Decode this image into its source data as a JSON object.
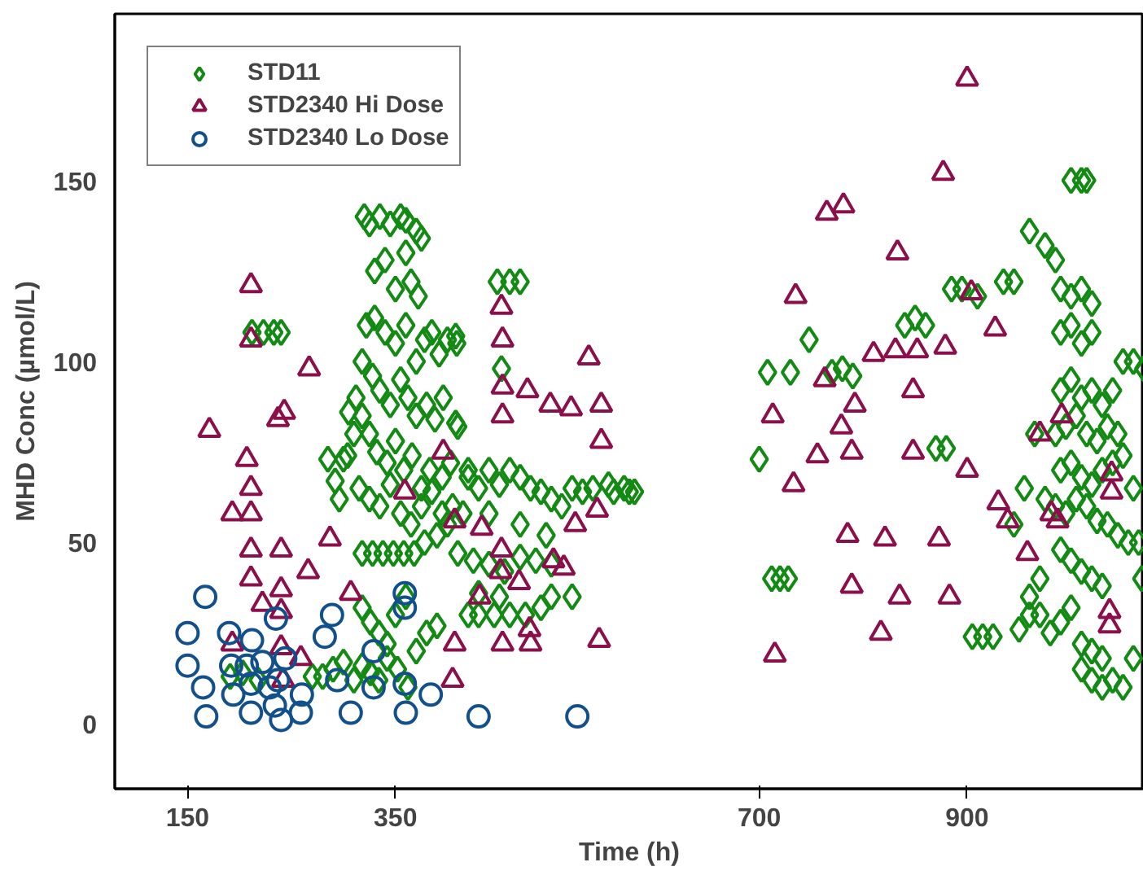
{
  "chart_data": {
    "type": "scatter",
    "xlabel": "Time (h)",
    "ylabel": "MHD Conc (µmol/L)",
    "xlim": [
      80,
      1070
    ],
    "xticks": [
      150,
      350,
      700,
      900
    ],
    "ylim": [
      -18,
      196
    ],
    "yticks": [
      0,
      50,
      100,
      150
    ],
    "grid": false,
    "legend": "top left",
    "series": [
      {
        "name": "STD11",
        "color": "#138a13",
        "marker": "diamond",
        "x": [
          212,
          223,
          233,
          240,
          191,
          203,
          218,
          320,
          325,
          335,
          345,
          355,
          360,
          370,
          375,
          330,
          340,
          350,
          360,
          365,
          372,
          322,
          330,
          340,
          350,
          360,
          370,
          378,
          385,
          392,
          400,
          408,
          318,
          328,
          335,
          345,
          355,
          362,
          370,
          380,
          388,
          396,
          410,
          318,
          325,
          332,
          342,
          350,
          358,
          366,
          375,
          383,
          395,
          403,
          420,
          315,
          325,
          335,
          345,
          355,
          365,
          375,
          385,
          395,
          405,
          318,
          328,
          338,
          348,
          358,
          368,
          378,
          390,
          318,
          326,
          334,
          342,
          350,
          360,
          370,
          380,
          390,
          318,
          326,
          334,
          342,
          352,
          362,
          300,
          292,
          304,
          285,
          296,
          310,
          305,
          312,
          300,
          310,
          280,
          290,
          270,
          420,
          430,
          440,
          450,
          460,
          470,
          480,
          490,
          500,
          510,
          520,
          530,
          540,
          448,
          460,
          470,
          409,
          408,
          452,
          708,
          730,
          748,
          410,
          425,
          440,
          455,
          470,
          485,
          500,
          420,
          430,
          445,
          460,
          475,
          490,
          430,
          450,
          500,
          520,
          400,
          415,
          440,
          470,
          495,
          575,
          580,
          570,
          560,
          555,
          700,
          712,
          720,
          728,
          770,
          780,
          790,
          840,
          850,
          860,
          870,
          880,
          885,
          895,
          910,
          905,
          915,
          925,
          935,
          945,
          960,
          975,
          985,
          1000,
          1010,
          1015,
          990,
          1000,
          1010,
          1020,
          990,
          1000,
          1010,
          1020,
          990,
          1000,
          1010,
          1020,
          1030,
          1040,
          1050,
          1060,
          1070,
          985,
          995,
          1005,
          1015,
          1025,
          1035,
          1045,
          990,
          1000,
          1010,
          1020,
          1030,
          1040,
          1050,
          1060,
          975,
          985,
          995,
          1005,
          1015,
          1025,
          1035,
          1045,
          1055,
          990,
          1000,
          1010,
          1020,
          1030,
          970,
          960,
          970,
          980,
          990,
          1000,
          1010,
          1020,
          1030,
          1010,
          1020,
          1030,
          1040,
          1050,
          1060,
          960,
          950,
          965,
          955,
          945,
          1065,
          1068
        ],
        "values": [
          108,
          108,
          108,
          108,
          13,
          14,
          12,
          140,
          138,
          140,
          138,
          140,
          139,
          136,
          134,
          125,
          128,
          120,
          130,
          122,
          118,
          110,
          112,
          108,
          105,
          110,
          100,
          106,
          108,
          102,
          106,
          107,
          100,
          96,
          92,
          88,
          95,
          90,
          85,
          88,
          84,
          90,
          82,
          85,
          80,
          75,
          72,
          78,
          70,
          74,
          65,
          70,
          68,
          72,
          70,
          65,
          62,
          60,
          66,
          58,
          55,
          60,
          64,
          58,
          60,
          47,
          47,
          47,
          47,
          47,
          47,
          50,
          52,
          32,
          28,
          25,
          22,
          30,
          35,
          20,
          25,
          27,
          16,
          14,
          12,
          18,
          15,
          10,
          73,
          67,
          74,
          73,
          62,
          80,
          86,
          90,
          17,
          12,
          13,
          15,
          13,
          68,
          65,
          70,
          66,
          70,
          68,
          65,
          64,
          62,
          60,
          65,
          64,
          65,
          122,
          122,
          122,
          105,
          83,
          98,
          97,
          97,
          106,
          47,
          45,
          44,
          42,
          46,
          45,
          44,
          30,
          30,
          30,
          30,
          30,
          32,
          36,
          35,
          35,
          35,
          55,
          58,
          58,
          55,
          52,
          64,
          64,
          65,
          64,
          66,
          73,
          40,
          40,
          40,
          97,
          98,
          96,
          110,
          112,
          110,
          76,
          76,
          120,
          120,
          118,
          24,
          24,
          24,
          122,
          122,
          136,
          132,
          128,
          150,
          150,
          150,
          120,
          118,
          120,
          116,
          108,
          110,
          105,
          108,
          92,
          95,
          90,
          92,
          88,
          92,
          100,
          100,
          98,
          80,
          82,
          85,
          80,
          78,
          82,
          80,
          70,
          72,
          68,
          66,
          70,
          72,
          74,
          65,
          62,
          60,
          58,
          62,
          60,
          56,
          55,
          52,
          50,
          48,
          45,
          42,
          40,
          38,
          40,
          35,
          30,
          25,
          28,
          32,
          22,
          20,
          18,
          15,
          12,
          10,
          12,
          10,
          18,
          30,
          26,
          80,
          65,
          55,
          50,
          40
        ]
      },
      {
        "name": "STD2340 Hi Dose",
        "color": "#8a0f4a",
        "marker": "triangle",
        "x": [
          211,
          211,
          171,
          243,
          237,
          267,
          207,
          211,
          193,
          211,
          211,
          240,
          287,
          307,
          266,
          240,
          240,
          222,
          211,
          193,
          240,
          259,
          242,
          405,
          359,
          452,
          453,
          453,
          453,
          451,
          477,
          499,
          519,
          453,
          480,
          735,
          765,
          781,
          833,
          900,
          877,
          904,
          927,
          879,
          810,
          831,
          852,
          536,
          763,
          792,
          848,
          548,
          713,
          548,
          779,
          848,
          756,
          789,
          733,
          544,
          785,
          523,
          821,
          789,
          835,
          883,
          817,
          546,
          715,
          991,
          1039,
          1039,
          1037,
          1037,
          970,
          930,
          939,
          981,
          900,
          873,
          987,
          958,
          407,
          433,
          407,
          452,
          469,
          431,
          502,
          512,
          479,
          396
        ],
        "values": [
          121,
          106,
          81,
          86,
          84,
          98,
          73,
          65,
          58,
          58,
          48,
          48,
          51,
          36,
          42,
          37,
          31,
          33,
          40,
          22,
          21,
          18,
          12,
          12,
          64,
          115,
          106,
          93,
          85,
          42,
          92,
          88,
          87,
          22,
          22,
          118,
          141,
          143,
          130,
          178,
          152,
          119,
          109,
          104,
          102,
          103,
          103,
          101,
          95,
          88,
          92,
          88,
          85,
          78,
          82,
          75,
          74,
          75,
          66,
          59,
          52,
          55,
          51,
          38,
          35,
          35,
          25,
          23,
          19,
          85,
          69,
          64,
          31,
          27,
          80,
          61,
          56,
          58,
          70,
          51,
          56,
          47,
          56,
          54,
          22,
          48,
          39,
          35,
          45,
          43,
          26,
          75
        ]
      },
      {
        "name": "STD2340 Lo Dose",
        "color": "#12508c",
        "marker": "circle",
        "x": [
          150,
          150,
          167,
          165,
          168,
          190,
          192,
          194,
          211,
          211,
          212,
          235,
          237,
          240,
          260,
          259,
          282,
          289,
          294,
          307,
          329,
          329,
          359,
          359,
          360,
          359,
          384,
          430,
          525,
          229,
          222,
          244,
          207,
          234
        ],
        "values": [
          25,
          16,
          35,
          10,
          2,
          25,
          16,
          8,
          3,
          11,
          23,
          29,
          12,
          1,
          8,
          3,
          24,
          30,
          12,
          3,
          10,
          20,
          36,
          32,
          3,
          11,
          8,
          2,
          2,
          10,
          17,
          18,
          16,
          5
        ]
      }
    ]
  }
}
